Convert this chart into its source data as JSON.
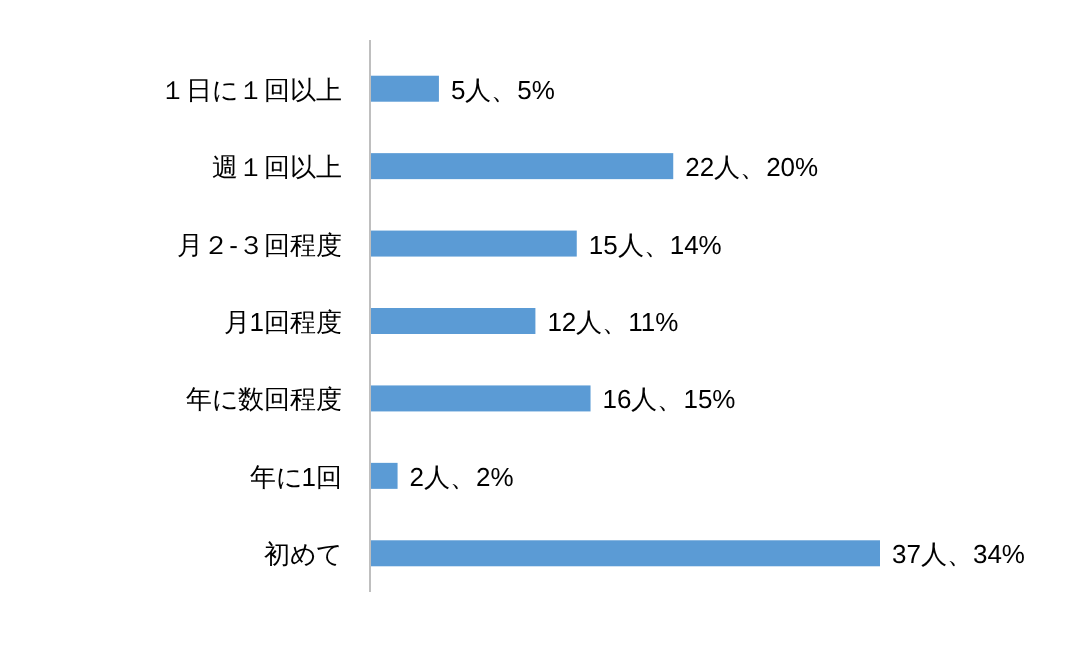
{
  "chart_data": {
    "type": "bar",
    "orientation": "horizontal",
    "categories": [
      "１日に１回以上",
      "週１回以上",
      "月２-３回程度",
      "月1回程度",
      "年に数回程度",
      "年に1回",
      "初めて"
    ],
    "values": [
      5,
      22,
      15,
      12,
      16,
      2,
      37
    ],
    "value_labels": [
      "5人、5%",
      "22人、20%",
      "15人、14%",
      "12人、11%",
      "16人、15%",
      "2人、2%",
      "37人、34%"
    ],
    "color": "#5b9bd5"
  }
}
